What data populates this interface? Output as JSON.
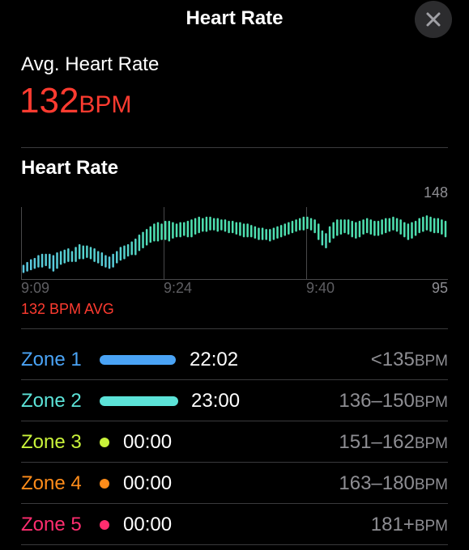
{
  "header": {
    "title": "Heart Rate"
  },
  "summary": {
    "label": "Avg. Heart Rate",
    "value": "132",
    "unit": "BPM"
  },
  "chart": {
    "title": "Heart Rate",
    "max_label": "148",
    "min_label": "95",
    "avg_label": "132 BPM AVG",
    "x_ticks": [
      "9:09",
      "9:24",
      "9:40"
    ],
    "low_color": "#5ac8e0",
    "high_color": "#4ee0b0",
    "gridline_color": "#48484a"
  },
  "chart_data": {
    "type": "bar",
    "title": "Heart Rate",
    "ylabel": "",
    "ylim": [
      95,
      148
    ],
    "x_ticks": [
      "9:09",
      "9:24",
      "9:40"
    ],
    "series": [
      {
        "values": [
          [
            100,
            106
          ],
          [
            101,
            108
          ],
          [
            102,
            110
          ],
          [
            103,
            111
          ],
          [
            104,
            113
          ],
          [
            104,
            114
          ],
          [
            105,
            114
          ],
          [
            103,
            114
          ],
          [
            101,
            113
          ],
          [
            103,
            115
          ],
          [
            106,
            116
          ],
          [
            107,
            117
          ],
          [
            108,
            118
          ],
          [
            108,
            116
          ],
          [
            108,
            119
          ],
          [
            110,
            121
          ],
          [
            110,
            120
          ],
          [
            111,
            120
          ],
          [
            110,
            119
          ],
          [
            108,
            118
          ],
          [
            107,
            116
          ],
          [
            105,
            115
          ],
          [
            104,
            113
          ],
          [
            103,
            112
          ],
          [
            104,
            114
          ],
          [
            107,
            116
          ],
          [
            109,
            119
          ],
          [
            110,
            120
          ],
          [
            112,
            121
          ],
          [
            113,
            123
          ],
          [
            113,
            125
          ],
          [
            116,
            128
          ],
          [
            118,
            130
          ],
          [
            120,
            132
          ],
          [
            122,
            134
          ],
          [
            123,
            136
          ],
          [
            123,
            137
          ],
          [
            124,
            136
          ],
          [
            124,
            138
          ],
          [
            123,
            138
          ],
          [
            125,
            137
          ],
          [
            126,
            136
          ],
          [
            126,
            137
          ],
          [
            127,
            137
          ],
          [
            126,
            138
          ],
          [
            126,
            139
          ],
          [
            128,
            140
          ],
          [
            129,
            141
          ],
          [
            130,
            140
          ],
          [
            130,
            141
          ],
          [
            131,
            141
          ],
          [
            131,
            140
          ],
          [
            130,
            140
          ],
          [
            131,
            139
          ],
          [
            130,
            139
          ],
          [
            129,
            138
          ],
          [
            129,
            138
          ],
          [
            128,
            137
          ],
          [
            127,
            137
          ],
          [
            126,
            136
          ],
          [
            126,
            136
          ],
          [
            126,
            135
          ],
          [
            125,
            134
          ],
          [
            124,
            133
          ],
          [
            124,
            133
          ],
          [
            124,
            132
          ],
          [
            123,
            132
          ],
          [
            124,
            133
          ],
          [
            125,
            134
          ],
          [
            126,
            135
          ],
          [
            127,
            136
          ],
          [
            128,
            137
          ],
          [
            129,
            138
          ],
          [
            130,
            139
          ],
          [
            131,
            140
          ],
          [
            131,
            141
          ],
          [
            132,
            141
          ],
          [
            131,
            140
          ],
          [
            129,
            139
          ],
          [
            124,
            136
          ],
          [
            120,
            131
          ],
          [
            118,
            129
          ],
          [
            122,
            134
          ],
          [
            125,
            137
          ],
          [
            127,
            139
          ],
          [
            128,
            139
          ],
          [
            129,
            139
          ],
          [
            128,
            139
          ],
          [
            126,
            138
          ],
          [
            125,
            137
          ],
          [
            126,
            138
          ],
          [
            128,
            139
          ],
          [
            129,
            140
          ],
          [
            128,
            139
          ],
          [
            127,
            138
          ],
          [
            127,
            138
          ],
          [
            128,
            139
          ],
          [
            129,
            140
          ],
          [
            130,
            140
          ],
          [
            131,
            141
          ],
          [
            130,
            140
          ],
          [
            128,
            139
          ],
          [
            126,
            137
          ],
          [
            124,
            136
          ],
          [
            125,
            137
          ],
          [
            127,
            138
          ],
          [
            129,
            140
          ],
          [
            130,
            141
          ],
          [
            131,
            142
          ],
          [
            130,
            141
          ],
          [
            129,
            140
          ],
          [
            129,
            140
          ],
          [
            128,
            139
          ],
          [
            126,
            138
          ]
        ]
      }
    ]
  },
  "zones": [
    {
      "name": "Zone 1",
      "color": "#4aa3f5",
      "indicator": "bar",
      "indicator_fill": 1.0,
      "time": "22:02",
      "range": "<135",
      "unit": "BPM"
    },
    {
      "name": "Zone 2",
      "color": "#5ce3d8",
      "indicator": "bar",
      "indicator_fill": 1.0,
      "time": "23:00",
      "range": "136–150",
      "unit": "BPM"
    },
    {
      "name": "Zone 3",
      "color": "#c9f23a",
      "indicator": "dot",
      "time": "00:00",
      "range": "151–162",
      "unit": "BPM"
    },
    {
      "name": "Zone 4",
      "color": "#ff8c1a",
      "indicator": "dot",
      "time": "00:00",
      "range": "163–180",
      "unit": "BPM"
    },
    {
      "name": "Zone 5",
      "color": "#ff2d6f",
      "indicator": "dot",
      "time": "00:00",
      "range": "181+",
      "unit": "BPM"
    }
  ],
  "icons": {
    "close": "close-icon"
  }
}
